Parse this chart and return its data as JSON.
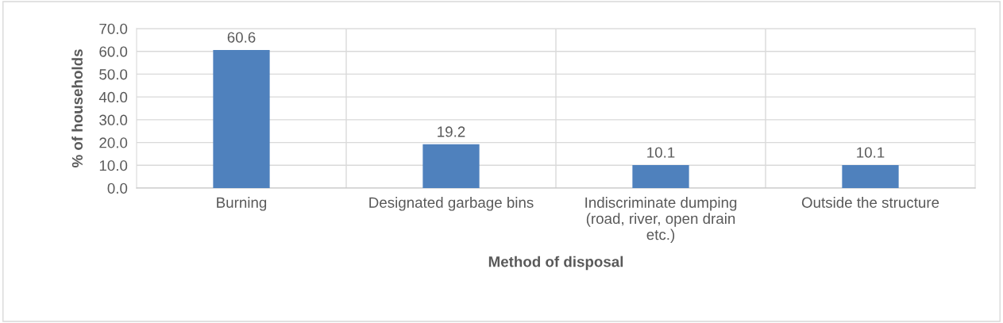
{
  "chart_data": {
    "type": "bar",
    "xlabel": "Method of disposal",
    "ylabel": "% of households",
    "categories": [
      "Burning",
      "Designated garbage bins",
      "Indiscriminate dumping (road, river, open drain etc.)",
      "Outside the structure"
    ],
    "values": [
      60.6,
      19.2,
      10.1,
      10.1
    ],
    "color": "#4f81bd",
    "data_labels": true,
    "grid": true,
    "ylim": [
      0,
      70
    ],
    "yticks": [
      {
        "value": 0,
        "label": "0.0"
      },
      {
        "value": 10,
        "label": "10.0"
      },
      {
        "value": 20,
        "label": "20.0"
      },
      {
        "value": 30,
        "label": "30.0"
      },
      {
        "value": 40,
        "label": "40.0"
      },
      {
        "value": 50,
        "label": "50.0"
      },
      {
        "value": 60,
        "label": "60.0"
      },
      {
        "value": 70,
        "label": "70.0"
      }
    ]
  }
}
